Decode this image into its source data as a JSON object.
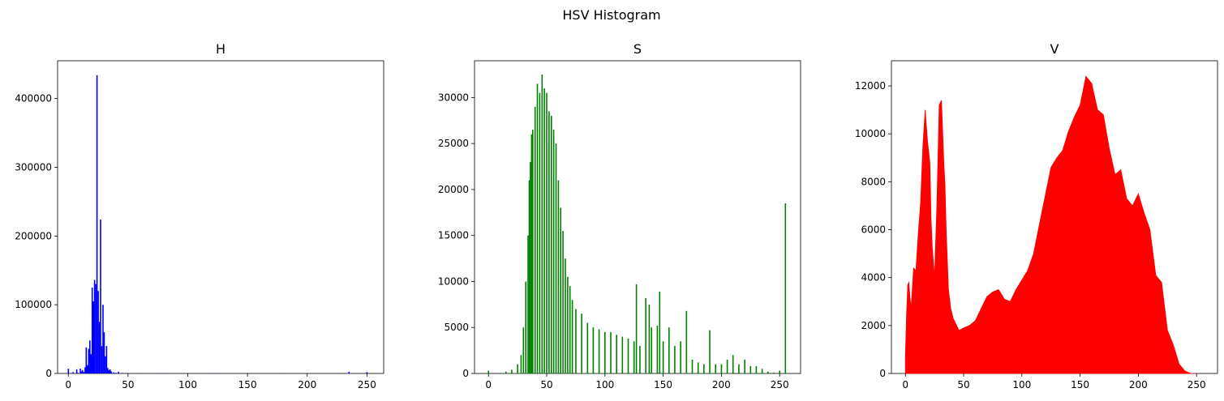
{
  "figure_title": "HSV Histogram",
  "chart_data": [
    {
      "type": "bar",
      "title": "H",
      "color": "#0000ff",
      "xlim": [
        -9,
        264
      ],
      "ylim": [
        0,
        455000
      ],
      "xticks": [
        0,
        50,
        100,
        150,
        200,
        250
      ],
      "yticks": [
        0,
        100000,
        200000,
        300000,
        400000
      ],
      "x": [
        0,
        4,
        7,
        8,
        10,
        11,
        12,
        13,
        14,
        15,
        16,
        17,
        18,
        19,
        20,
        21,
        22,
        23,
        24,
        25,
        26,
        27,
        28,
        29,
        30,
        31,
        32,
        33,
        34,
        35,
        36,
        38,
        40,
        42,
        45,
        50,
        60,
        80,
        100,
        120,
        150,
        180,
        200,
        235,
        250
      ],
      "values": [
        7000,
        2000,
        6000,
        1000,
        7000,
        3000,
        5000,
        2000,
        9000,
        38000,
        12000,
        36000,
        48000,
        28000,
        125000,
        105000,
        136000,
        130000,
        434000,
        120000,
        75000,
        224000,
        40000,
        100000,
        60000,
        25000,
        40000,
        8000,
        5000,
        6000,
        3000,
        1500,
        1000,
        2500,
        1000,
        500,
        300,
        200,
        200,
        200,
        300,
        200,
        200,
        2500,
        2000
      ]
    },
    {
      "type": "bar",
      "title": "S",
      "color": "#008000",
      "xlim": [
        -12,
        268
      ],
      "ylim": [
        0,
        34000
      ],
      "xticks": [
        0,
        50,
        100,
        150,
        200,
        250
      ],
      "yticks": [
        0,
        5000,
        10000,
        15000,
        20000,
        25000,
        30000
      ],
      "x": [
        0,
        15,
        20,
        25,
        28,
        30,
        32,
        34,
        35,
        36,
        37,
        38,
        40,
        42,
        44,
        46,
        48,
        50,
        52,
        54,
        56,
        58,
        60,
        62,
        64,
        66,
        68,
        70,
        72,
        75,
        80,
        85,
        90,
        95,
        100,
        105,
        110,
        115,
        120,
        125,
        127,
        130,
        135,
        138,
        140,
        145,
        147,
        150,
        155,
        160,
        165,
        170,
        175,
        180,
        185,
        190,
        195,
        200,
        205,
        210,
        215,
        220,
        225,
        230,
        235,
        240,
        245,
        250,
        255
      ],
      "values": [
        300,
        200,
        400,
        1000,
        2000,
        5000,
        10000,
        15000,
        21000,
        23000,
        26000,
        26500,
        29000,
        31500,
        30500,
        32500,
        31000,
        30500,
        28500,
        28000,
        26500,
        25000,
        21000,
        18000,
        15500,
        12500,
        10500,
        9500,
        8000,
        7000,
        6500,
        5500,
        5000,
        4800,
        4500,
        4500,
        4200,
        4000,
        3800,
        3500,
        9700,
        3000,
        8200,
        7500,
        5000,
        5200,
        8900,
        3500,
        5000,
        3000,
        3500,
        6800,
        1500,
        1200,
        1000,
        4700,
        1000,
        1000,
        1500,
        2000,
        1000,
        1500,
        800,
        800,
        500,
        200,
        100,
        300,
        18500
      ]
    },
    {
      "type": "area",
      "title": "V",
      "color": "#ff0000",
      "xlim": [
        -12,
        268
      ],
      "ylim": [
        0,
        13050
      ],
      "xticks": [
        0,
        50,
        100,
        150,
        200,
        250
      ],
      "yticks": [
        0,
        2000,
        4000,
        6000,
        8000,
        10000,
        12000
      ],
      "x": [
        0,
        1,
        2,
        3,
        4,
        5,
        7,
        9,
        11,
        13,
        15,
        17,
        19,
        21,
        22,
        23,
        25,
        27,
        29,
        31,
        33,
        34,
        35,
        37,
        39,
        41,
        43,
        46,
        50,
        55,
        60,
        65,
        70,
        75,
        80,
        85,
        90,
        95,
        100,
        105,
        110,
        115,
        120,
        125,
        130,
        135,
        140,
        145,
        150,
        155,
        160,
        165,
        170,
        175,
        180,
        185,
        190,
        195,
        200,
        205,
        210,
        215,
        220,
        225,
        230,
        235,
        240,
        245,
        250
      ],
      "values": [
        700,
        2500,
        3700,
        3800,
        3100,
        2800,
        4400,
        4300,
        5800,
        7100,
        9500,
        11000,
        9700,
        8800,
        6500,
        5300,
        4000,
        7000,
        11200,
        11400,
        8800,
        7900,
        6000,
        3500,
        2700,
        2300,
        2100,
        1800,
        1900,
        2000,
        2200,
        2700,
        3200,
        3400,
        3500,
        3100,
        3000,
        3500,
        3900,
        4300,
        5000,
        6200,
        7400,
        8600,
        9000,
        9300,
        10100,
        10700,
        11200,
        12400,
        12100,
        11000,
        10800,
        9400,
        8300,
        8500,
        7300,
        7000,
        7500,
        6700,
        6000,
        4100,
        3800,
        1800,
        1200,
        400,
        100,
        0,
        0
      ]
    }
  ]
}
